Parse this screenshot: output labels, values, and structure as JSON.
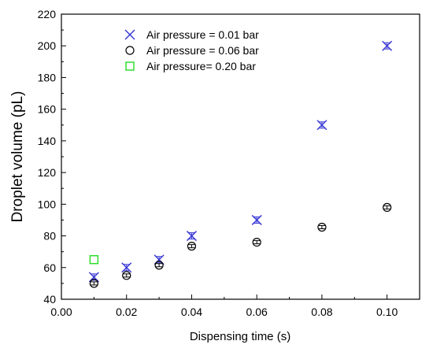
{
  "chart_data": {
    "type": "scatter",
    "xlabel": "Dispensing time (s)",
    "ylabel": "Droplet volume (pL)",
    "xlim": [
      0.0,
      0.11
    ],
    "ylim": [
      40,
      220
    ],
    "xticks": [
      0.0,
      0.02,
      0.04,
      0.06,
      0.08,
      0.1
    ],
    "xtick_labels": [
      "0.00",
      "0.02",
      "0.04",
      "0.06",
      "0.08",
      "0.10"
    ],
    "yticks": [
      40,
      60,
      80,
      100,
      120,
      140,
      160,
      180,
      200,
      220
    ],
    "ytick_labels": [
      "40",
      "60",
      "80",
      "100",
      "120",
      "140",
      "160",
      "180",
      "200",
      "220"
    ],
    "grid": false,
    "legend_position": "top-left",
    "series": [
      {
        "name": "Air pressure = 0.01 bar",
        "marker": "x",
        "color": "#3a3ad6",
        "x": [
          0.01,
          0.02,
          0.03,
          0.04,
          0.06,
          0.08,
          0.1
        ],
        "y": [
          54,
          60,
          65,
          80,
          90,
          150,
          200
        ],
        "yerr": [
          2,
          2,
          2,
          2,
          2,
          2,
          2
        ]
      },
      {
        "name": "Air pressure = 0.06 bar",
        "marker": "circle",
        "color": "#000000",
        "x": [
          0.01,
          0.02,
          0.03,
          0.04,
          0.06,
          0.08,
          0.1
        ],
        "y": [
          50,
          55,
          61.5,
          73.5,
          76,
          85.5,
          98
        ],
        "yerr": [
          1,
          1,
          1,
          1,
          1,
          1,
          1
        ]
      },
      {
        "name": "Air pressure= 0.20 bar",
        "marker": "square",
        "color": "#22dd22",
        "x": [
          0.01
        ],
        "y": [
          65
        ],
        "yerr": [
          0
        ]
      }
    ]
  }
}
